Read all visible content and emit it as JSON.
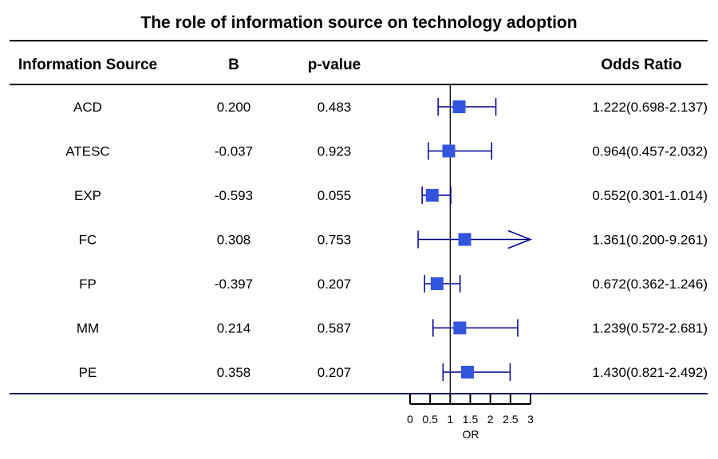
{
  "chart_data": {
    "type": "forest",
    "title": "The role of information source on technology adoption",
    "columns": [
      "Information Source",
      "B",
      "p-value",
      "Odds Ratio"
    ],
    "rows": [
      {
        "label": "ACD",
        "b": "0.200",
        "p": "0.483",
        "or_text": "1.222(0.698-2.137)",
        "or": 1.222,
        "lo": 0.698,
        "hi": 2.137
      },
      {
        "label": "ATESC",
        "b": "-0.037",
        "p": "0.923",
        "or_text": "0.964(0.457-2.032)",
        "or": 0.964,
        "lo": 0.457,
        "hi": 2.032
      },
      {
        "label": "EXP",
        "b": "-0.593",
        "p": "0.055",
        "or_text": "0.552(0.301-1.014)",
        "or": 0.552,
        "lo": 0.301,
        "hi": 1.014
      },
      {
        "label": "FC",
        "b": "0.308",
        "p": "0.753",
        "or_text": "1.361(0.200-9.261)",
        "or": 1.361,
        "lo": 0.2,
        "hi": 9.261
      },
      {
        "label": "FP",
        "b": "-0.397",
        "p": "0.207",
        "or_text": "0.672(0.362-1.246)",
        "or": 0.672,
        "lo": 0.362,
        "hi": 1.246
      },
      {
        "label": "MM",
        "b": "0.214",
        "p": "0.587",
        "or_text": "1.239(0.572-2.681)",
        "or": 1.239,
        "lo": 0.572,
        "hi": 2.681
      },
      {
        "label": "PE",
        "b": "0.358",
        "p": "0.207",
        "or_text": "1.430(0.821-2.492)",
        "or": 1.43,
        "lo": 0.821,
        "hi": 2.492
      }
    ],
    "xlabel": "OR",
    "xlim": [
      0,
      3
    ],
    "xticks": [
      0,
      0.5,
      1,
      1.5,
      2,
      2.5,
      3
    ],
    "xtick_labels": [
      "0",
      "0.5",
      "1",
      "1.5",
      "2",
      "2.5",
      "3"
    ],
    "reference_line": 1,
    "colors": {
      "marker": "#3355dd",
      "ci": "#00008b",
      "rule": "#000000",
      "bottom_rule": "#191970"
    }
  }
}
